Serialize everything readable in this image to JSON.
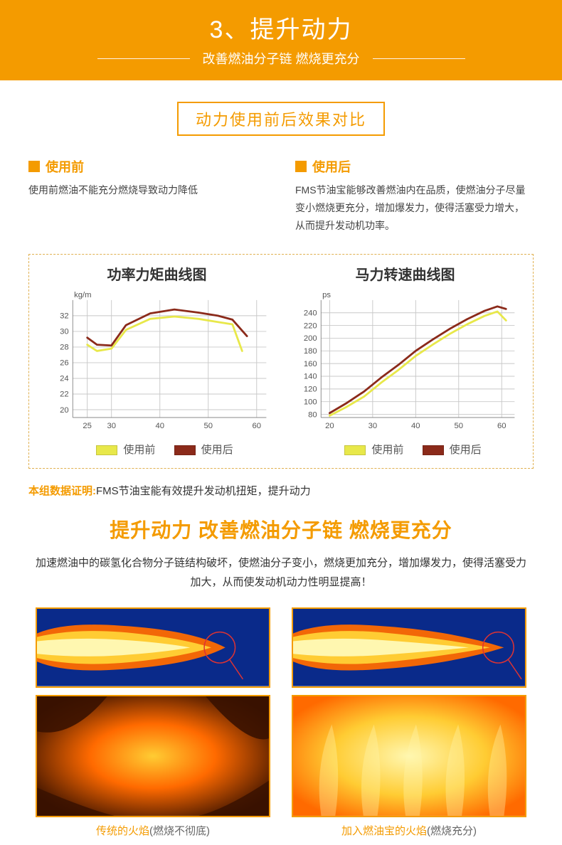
{
  "banner": {
    "title": "3、提升动力",
    "subtitle": "改善燃油分子链 燃烧更充分",
    "bg_color": "#f49b00",
    "text_color": "#ffffff"
  },
  "compare_title": "动力使用前后效果对比",
  "before": {
    "heading": "使用前",
    "body": "使用前燃油不能充分燃烧导致动力降低"
  },
  "after": {
    "heading": "使用后",
    "body": "FMS节油宝能够改善燃油内在品质，使燃油分子尽量变小燃烧更充分，增加爆发力，使得活塞受力增大，从而提升发动机功率。"
  },
  "chart1": {
    "title": "功率力矩曲线图",
    "y_unit": "kg/m",
    "x_ticks": [
      25,
      30,
      40,
      50,
      60
    ],
    "y_ticks": [
      20,
      22,
      24,
      26,
      28,
      30,
      32
    ],
    "xlim": [
      22,
      62
    ],
    "ylim": [
      19,
      34
    ],
    "grid_color": "#c8c8c8",
    "axis_color": "#888",
    "line_before": {
      "color": "#e8e84a",
      "width": 3,
      "points": [
        [
          25,
          28.3
        ],
        [
          27,
          27.5
        ],
        [
          30,
          27.8
        ],
        [
          33,
          30.2
        ],
        [
          38,
          31.6
        ],
        [
          43,
          31.9
        ],
        [
          48,
          31.6
        ],
        [
          52,
          31.2
        ],
        [
          55,
          30.9
        ],
        [
          57,
          27.5
        ]
      ]
    },
    "line_after": {
      "color": "#8b2a1a",
      "width": 3,
      "points": [
        [
          25,
          29.2
        ],
        [
          27,
          28.3
        ],
        [
          30,
          28.2
        ],
        [
          33,
          30.8
        ],
        [
          38,
          32.3
        ],
        [
          43,
          32.8
        ],
        [
          48,
          32.4
        ],
        [
          52,
          32.0
        ],
        [
          55,
          31.5
        ],
        [
          58,
          29.4
        ]
      ]
    }
  },
  "chart2": {
    "title": "马力转速曲线图",
    "y_unit": "ps",
    "x_ticks": [
      20,
      30,
      40,
      50,
      60
    ],
    "y_ticks": [
      80,
      100,
      120,
      140,
      160,
      180,
      200,
      220,
      240
    ],
    "xlim": [
      18,
      63
    ],
    "ylim": [
      75,
      260
    ],
    "grid_color": "#c8c8c8",
    "axis_color": "#888",
    "line_before": {
      "color": "#e8e84a",
      "width": 3,
      "points": [
        [
          20,
          78
        ],
        [
          24,
          92
        ],
        [
          28,
          108
        ],
        [
          32,
          130
        ],
        [
          36,
          150
        ],
        [
          40,
          172
        ],
        [
          44,
          190
        ],
        [
          48,
          207
        ],
        [
          52,
          222
        ],
        [
          56,
          235
        ],
        [
          59,
          242
        ],
        [
          61,
          228
        ]
      ]
    },
    "line_after": {
      "color": "#8b2a1a",
      "width": 3,
      "points": [
        [
          20,
          82
        ],
        [
          24,
          98
        ],
        [
          28,
          116
        ],
        [
          32,
          138
        ],
        [
          36,
          158
        ],
        [
          40,
          180
        ],
        [
          44,
          198
        ],
        [
          48,
          215
        ],
        [
          52,
          230
        ],
        [
          56,
          243
        ],
        [
          59,
          250
        ],
        [
          61,
          246
        ]
      ]
    }
  },
  "legend": {
    "before": "使用前",
    "after": "使用后",
    "before_color": "#e8e84a",
    "after_color": "#8b2a1a"
  },
  "proof": {
    "lead": "本组数据证明:",
    "text": "FMS节油宝能有效提升发动机扭矩，提升动力"
  },
  "headline": "提升动力 改善燃油分子链 燃烧更充分",
  "description": "加速燃油中的碳氢化合物分子链结构破坏，使燃油分子变小，燃烧更加充分，增加爆发力，使得活塞受力加大，从而使发动机动力性明显提高！",
  "flames": {
    "border_color": "#f49b00",
    "jet_bg": "#0a2a8a",
    "close_bg_dark": "#3a1200",
    "flame_inner": "#fff7b0",
    "flame_mid": "#ffcc33",
    "flame_outer": "#ff6a00",
    "circle_color": "#d33",
    "left": {
      "caption_orange": "传统的火焰",
      "caption_gray": "(燃烧不彻底)"
    },
    "right": {
      "caption_orange": "加入燃油宝的火焰",
      "caption_gray": "(燃烧充分)"
    }
  },
  "fonts": {
    "base": 15,
    "banner_title": 34,
    "banner_sub": 18,
    "box_title": 22,
    "chart_title": 20,
    "headline": 28
  }
}
